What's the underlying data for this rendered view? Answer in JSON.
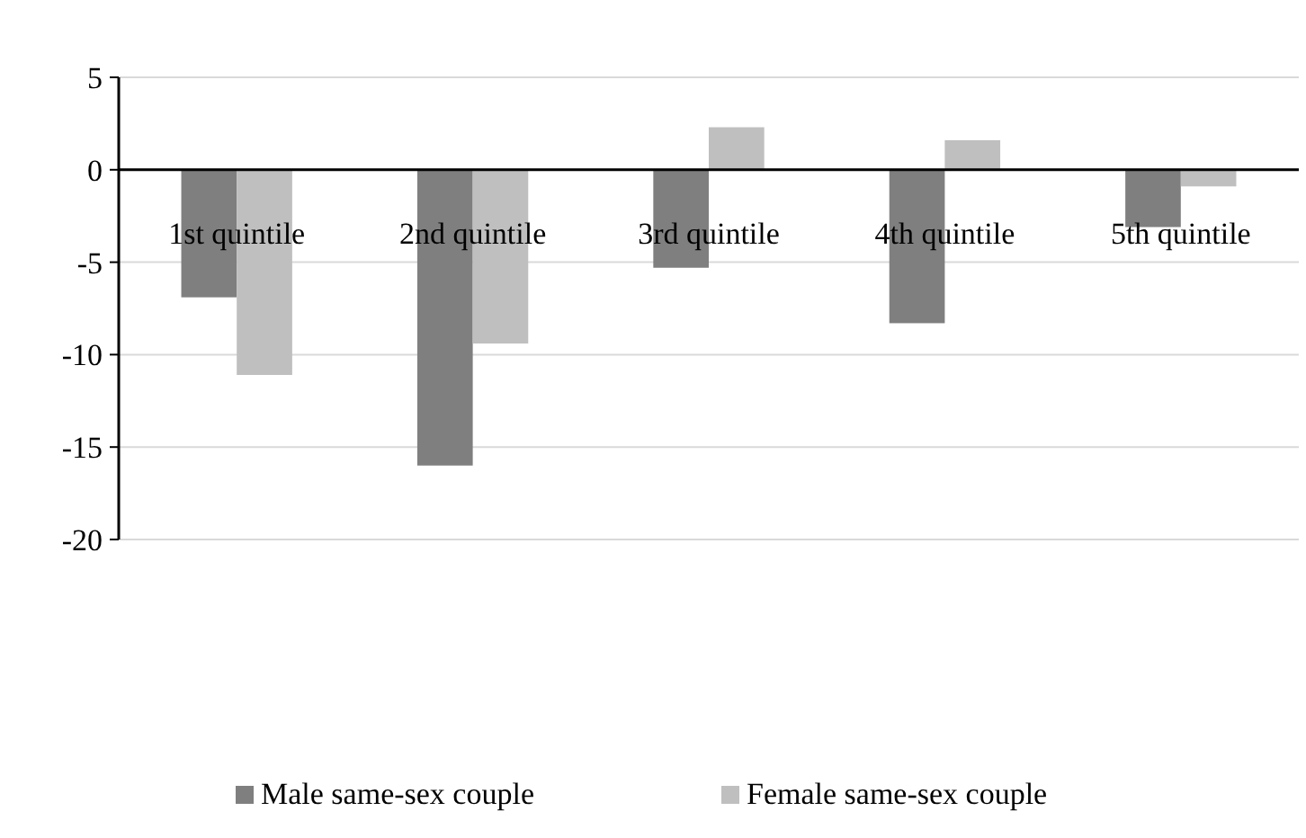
{
  "chart_data": {
    "type": "bar",
    "categories": [
      "1st quintile",
      "2nd quintile",
      "3rd quintile",
      "4th quintile",
      "5th quintile"
    ],
    "series": [
      {
        "name": "Male same-sex couple",
        "color": "#7f7f7f",
        "values": [
          -6.9,
          -16.0,
          -5.3,
          -8.3,
          -3.1
        ]
      },
      {
        "name": "Female same-sex couple",
        "color": "#bfbfbf",
        "values": [
          -11.1,
          -9.4,
          2.3,
          1.6,
          -0.9
        ]
      }
    ],
    "ylim": [
      -20,
      5
    ],
    "yticks": [
      -20,
      -15,
      -10,
      -5,
      0,
      5
    ],
    "grid": "y",
    "legend": "bottom"
  }
}
